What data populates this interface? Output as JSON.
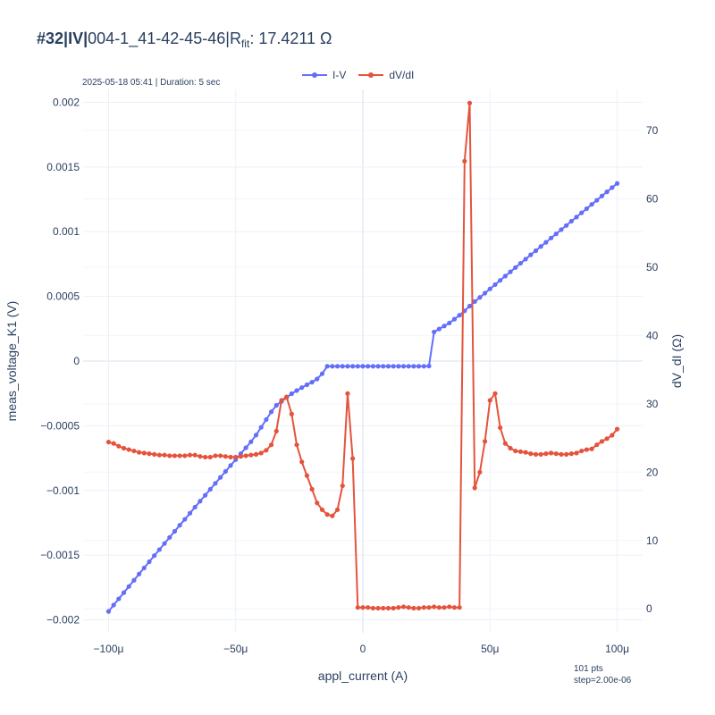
{
  "header": {
    "id_label": "#32",
    "sep1": "|",
    "mode_label": "IV",
    "sep2": "|",
    "device": "004-1_41-42-45-46",
    "sep3": "|",
    "rfit_main": "R",
    "rfit_sub": "fit",
    "rfit_value": ": 17.4211 Ω"
  },
  "meta": {
    "timestamp": "2025-05-18 05:41 | Duration: 5 sec",
    "points_line1": "101 pts",
    "points_line2": "step=2.00e-06"
  },
  "colors": {
    "iv": "#636efa",
    "dvdi": "#e5533d",
    "grid": "#ebf0f8"
  },
  "chart_data": {
    "type": "line",
    "title": "",
    "xlabel": "appl_current (A)",
    "ylabel": "meas_voltage_K1 (V)",
    "y2label": "dV_dI (Ω)",
    "xlim": [
      -0.00011,
      0.00011
    ],
    "ylim": [
      -0.0021,
      0.0021
    ],
    "y2lim": [
      -3.5,
      76
    ],
    "x_ticks": [
      -0.0001,
      -5e-05,
      0,
      5e-05,
      0.0001
    ],
    "x_tick_labels": [
      "−100μ",
      "−50μ",
      "0",
      "50μ",
      "100μ"
    ],
    "y_ticks": [
      -0.002,
      -0.0015,
      -0.001,
      -0.0005,
      0,
      0.0005,
      0.001,
      0.0015,
      0.002
    ],
    "y_tick_labels": [
      "−0.002",
      "−0.0015",
      "−0.001",
      "−0.0005",
      "0",
      "0.0005",
      "0.001",
      "0.0015",
      "0.002"
    ],
    "y2_ticks": [
      0,
      10,
      20,
      30,
      40,
      50,
      60,
      70
    ],
    "y2_tick_labels": [
      "0",
      "10",
      "20",
      "30",
      "40",
      "50",
      "60",
      "70"
    ],
    "legend_position": "top-center",
    "x_start": -0.0001,
    "x_step": 2e-06,
    "series": [
      {
        "name": "I-V",
        "axis": "y",
        "color": "#636efa",
        "values": [
          -0.001935,
          -0.001886,
          -0.001838,
          -0.00179,
          -0.001742,
          -0.001694,
          -0.001646,
          -0.001599,
          -0.001551,
          -0.001504,
          -0.001457,
          -0.00141,
          -0.001363,
          -0.001316,
          -0.001269,
          -0.001223,
          -0.001176,
          -0.001129,
          -0.001083,
          -0.001037,
          -0.000991,
          -0.000945,
          -0.000899,
          -0.000853,
          -0.000807,
          -0.000762,
          -0.000716,
          -0.00067,
          -0.000624,
          -0.000572,
          -0.000512,
          -0.000452,
          -0.000392,
          -0.000342,
          -0.000312,
          -0.000282,
          -0.000252,
          -0.000228,
          -0.000205,
          -0.000183,
          -0.000163,
          -0.000138,
          -9.8e-05,
          -4e-05,
          -4e-05,
          -4e-05,
          -4e-05,
          -4e-05,
          -4e-05,
          -4e-05,
          -4e-05,
          -4e-05,
          -4e-05,
          -4e-05,
          -4e-05,
          -4e-05,
          -4e-05,
          -4e-05,
          -4e-05,
          -4e-05,
          -4e-05,
          -4e-05,
          -4e-05,
          -3.8e-05,
          0.000225,
          0.000248,
          0.000271,
          0.000294,
          0.000324,
          0.000354,
          0.000388,
          0.000425,
          0.00046,
          0.000492,
          0.000525,
          0.000558,
          0.000591,
          0.000624,
          0.000657,
          0.00069,
          0.000723,
          0.000756,
          0.000788,
          0.000821,
          0.000853,
          0.000886,
          0.000918,
          0.000951,
          0.000983,
          0.001016,
          0.001048,
          0.001081,
          0.001113,
          0.001146,
          0.001178,
          0.001211,
          0.001243,
          0.001276,
          0.001308,
          0.001341,
          0.001373
        ]
      },
      {
        "name": "dV/dI",
        "axis": "y2",
        "color": "#e5533d",
        "values": [
          24.4,
          24.2,
          23.8,
          23.5,
          23.3,
          23.1,
          22.9,
          22.8,
          22.7,
          22.6,
          22.5,
          22.5,
          22.4,
          22.4,
          22.4,
          22.4,
          22.5,
          22.5,
          22.3,
          22.2,
          22.2,
          22.4,
          22.4,
          22.3,
          22.2,
          22.2,
          22.3,
          22.4,
          22.5,
          22.6,
          22.8,
          23.2,
          24,
          26,
          30.5,
          31,
          28.5,
          24,
          21.5,
          19.5,
          17.5,
          15.5,
          14.5,
          13.8,
          13.6,
          14.5,
          18,
          31.5,
          22,
          0.2,
          0.2,
          0.2,
          0.1,
          0.1,
          0.1,
          0.1,
          0.1,
          0.2,
          0.3,
          0.2,
          0.1,
          0.1,
          0.2,
          0.2,
          0.3,
          0.2,
          0.2,
          0.3,
          0.2,
          0.2,
          65.5,
          74,
          17.7,
          20,
          24.5,
          30.5,
          31.5,
          26.5,
          24.2,
          23.5,
          23.1,
          23,
          22.9,
          22.7,
          22.6,
          22.6,
          22.7,
          22.8,
          22.7,
          22.6,
          22.6,
          22.7,
          22.8,
          23.1,
          23.3,
          23.4,
          24,
          24.5,
          24.9,
          25.4,
          26.3
        ]
      }
    ]
  }
}
